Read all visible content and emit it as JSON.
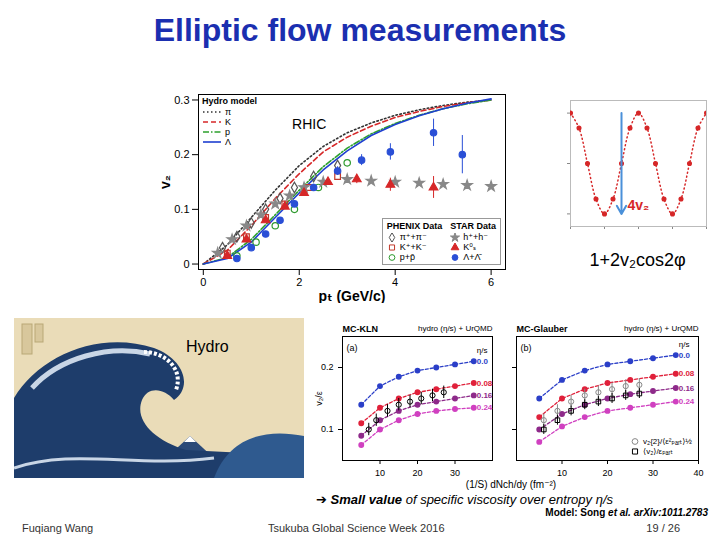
{
  "slide": {
    "title": "Elliptic flow measurements",
    "image_label": "Hydro",
    "conclusion_arrow": "➔",
    "conclusion_emphasis": "Small value",
    "conclusion_rest": " of specific viscosity over entropy η/s",
    "citation_prefix": "Model: Song ",
    "citation_italic": "et al. arXiv:1011.2783",
    "footer_left": "Fuqiang Wang",
    "footer_center": "Tsukuba Global Science Week 2016",
    "page": "19 / 26"
  },
  "chart_data": [
    {
      "type": "scatter",
      "x_label": "pₜ (GeV/c)",
      "y_label": "v₂",
      "xlim": [
        -0.1,
        6.3
      ],
      "ylim": [
        -0.01,
        0.31
      ],
      "xticks": [
        0,
        2,
        4,
        6
      ],
      "yticks": [
        0,
        0.1,
        0.2,
        0.3
      ],
      "annotations": [
        {
          "text": "RHIC",
          "x": 1.85,
          "y": 0.255
        }
      ],
      "legend_groups": [
        {
          "title": "Hydro model",
          "series": [
            "π",
            "K",
            "p",
            "Λ"
          ]
        },
        {
          "title": "PHENIX Data",
          "series": [
            "π⁺+π⁻",
            "K⁺+K⁻",
            "p+p̄"
          ]
        },
        {
          "title": "STAR Data",
          "series": [
            "h⁺+h⁻",
            "K⁰ₛ",
            "Λ+Λ̄"
          ]
        }
      ],
      "series": [
        {
          "name": "π",
          "type": "line",
          "line_style": "dotted",
          "color": "#333333",
          "x": [
            0,
            0.5,
            1,
            1.5,
            2,
            2.5,
            3,
            3.5,
            4,
            4.5,
            5,
            5.5,
            6
          ],
          "values": [
            0,
            0.035,
            0.085,
            0.135,
            0.18,
            0.215,
            0.24,
            0.258,
            0.272,
            0.282,
            0.29,
            0.296,
            0.3
          ]
        },
        {
          "name": "K",
          "type": "line",
          "line_style": "dashed",
          "color": "#d62728",
          "x": [
            0,
            0.5,
            1,
            1.5,
            2,
            2.5,
            3,
            3.5,
            4,
            4.5,
            5,
            5.5,
            6
          ],
          "values": [
            0,
            0.025,
            0.07,
            0.12,
            0.165,
            0.205,
            0.232,
            0.252,
            0.268,
            0.279,
            0.288,
            0.295,
            0.3
          ]
        },
        {
          "name": "p",
          "type": "line",
          "line_style": "dashdot",
          "color": "#2ca02c",
          "x": [
            0,
            0.5,
            1,
            1.5,
            2,
            2.5,
            3,
            3.5,
            4,
            4.5,
            5,
            5.5,
            6
          ],
          "values": [
            0,
            0.012,
            0.045,
            0.09,
            0.135,
            0.178,
            0.212,
            0.238,
            0.257,
            0.272,
            0.284,
            0.293,
            0.3
          ]
        },
        {
          "name": "Λ",
          "type": "line",
          "line_style": "solid",
          "color": "#1f3fd0",
          "x": [
            0,
            0.5,
            1,
            1.5,
            2,
            2.5,
            3,
            3.5,
            4,
            4.5,
            5,
            5.5,
            6
          ],
          "values": [
            0,
            0.01,
            0.04,
            0.085,
            0.13,
            0.172,
            0.207,
            0.235,
            0.255,
            0.271,
            0.284,
            0.294,
            0.302
          ]
        },
        {
          "name": "π⁺+π⁻",
          "type": "scatter",
          "marker": "diamond-open",
          "color": "#555555",
          "x": [
            0.4,
            0.7,
            1.0,
            1.3,
            1.6,
            1.9,
            2.3,
            2.8
          ],
          "values": [
            0.03,
            0.05,
            0.075,
            0.1,
            0.12,
            0.14,
            0.16,
            0.18
          ]
        },
        {
          "name": "K⁺+K⁻",
          "type": "scatter",
          "marker": "square-open",
          "color": "#c0392b",
          "x": [
            0.5,
            0.9,
            1.3,
            1.7,
            2.2,
            2.8
          ],
          "values": [
            0.02,
            0.05,
            0.085,
            0.11,
            0.14,
            0.16
          ]
        },
        {
          "name": "p+p̄",
          "type": "scatter",
          "marker": "circle-open",
          "color": "#2e9a2e",
          "x": [
            0.7,
            1.1,
            1.5,
            1.9,
            2.4,
            3.0
          ],
          "values": [
            0.015,
            0.04,
            0.07,
            0.1,
            0.14,
            0.185
          ]
        },
        {
          "name": "h⁺+h⁻",
          "type": "scatter",
          "marker": "star",
          "color": "#888888",
          "x": [
            0.3,
            0.6,
            0.9,
            1.2,
            1.5,
            1.8,
            2.1,
            2.5,
            3,
            3.5,
            4,
            4.5,
            5,
            5.5,
            6
          ],
          "values": [
            0.02,
            0.045,
            0.07,
            0.09,
            0.11,
            0.125,
            0.14,
            0.15,
            0.155,
            0.152,
            0.15,
            0.148,
            0.146,
            0.144,
            0.142
          ]
        },
        {
          "name": "K⁰ₛ",
          "type": "scatter",
          "marker": "triangle",
          "color": "#d62728",
          "x": [
            0.5,
            0.9,
            1.3,
            1.7,
            2.1,
            2.6,
            3.2,
            3.9,
            4.8
          ],
          "values": [
            0.015,
            0.045,
            0.08,
            0.105,
            0.13,
            0.15,
            0.155,
            0.145,
            0.14
          ],
          "errors": [
            0.002,
            0.003,
            0.003,
            0.004,
            0.005,
            0.006,
            0.008,
            0.012,
            0.02
          ]
        },
        {
          "name": "Λ+Λ̄",
          "type": "scatter",
          "marker": "circle",
          "color": "#2a4fd6",
          "x": [
            0.7,
            1.0,
            1.3,
            1.6,
            1.9,
            2.3,
            2.8,
            3.3,
            3.9,
            4.8,
            5.4
          ],
          "values": [
            0.01,
            0.03,
            0.055,
            0.08,
            0.11,
            0.14,
            0.17,
            0.19,
            0.205,
            0.24,
            0.2
          ],
          "errors": [
            0.003,
            0.003,
            0.004,
            0.004,
            0.005,
            0.006,
            0.008,
            0.01,
            0.015,
            0.025,
            0.035
          ]
        }
      ]
    },
    {
      "type": "scatter",
      "title": "1+2v₂cos2φ",
      "xlim": [
        0,
        360
      ],
      "ylim": [
        0.75,
        1.25
      ],
      "xticks": [
        0,
        90,
        180,
        270,
        360
      ],
      "yticks": [
        0.8,
        1,
        1.2
      ],
      "tick_labels": false,
      "color": "#d62728",
      "marker": "circle",
      "x": [
        0,
        22.5,
        45,
        67.5,
        90,
        112.5,
        135,
        157.5,
        180,
        202.5,
        225,
        247.5,
        270,
        292.5,
        315,
        337.5,
        360
      ],
      "values": [
        1.2,
        1.141,
        1,
        0.859,
        0.8,
        0.859,
        1,
        1.141,
        1.2,
        1.141,
        1,
        0.859,
        0.8,
        0.859,
        1,
        1.141,
        1.2
      ],
      "annotations": [
        {
          "text": "4v₂",
          "x": 135,
          "y1": 1.2,
          "y2": 0.8
        }
      ]
    },
    {
      "type": "line",
      "title": "MC-KLN",
      "subtitle": "hydro (η/s) + UrQMD",
      "panel_label": "(a)",
      "x_label": "(1/S) dNch/dy (fm⁻²)",
      "y_label": "v₂/ε",
      "legend_title": "η/s",
      "xlim": [
        0,
        40
      ],
      "ylim": [
        0.05,
        0.25
      ],
      "xticks": [
        10,
        20,
        30
      ],
      "yticks": [
        0.1,
        0.2
      ],
      "series": [
        {
          "name": "0.0",
          "color": "#2b3fc8",
          "marker": "circle",
          "x": [
            5,
            10,
            15,
            20,
            25,
            30,
            35
          ],
          "values": [
            0.14,
            0.17,
            0.185,
            0.195,
            0.2,
            0.205,
            0.21
          ]
        },
        {
          "name": "0.08",
          "color": "#e0203a",
          "marker": "circle",
          "x": [
            5,
            10,
            15,
            20,
            25,
            30,
            35
          ],
          "values": [
            0.11,
            0.135,
            0.15,
            0.16,
            0.165,
            0.17,
            0.175
          ]
        },
        {
          "name": "0.16",
          "color": "#8e2a8a",
          "marker": "circle",
          "x": [
            5,
            10,
            15,
            20,
            25,
            30,
            35
          ],
          "values": [
            0.09,
            0.115,
            0.13,
            0.14,
            0.145,
            0.15,
            0.155
          ]
        },
        {
          "name": "0.24",
          "color": "#d040c0",
          "marker": "circle",
          "x": [
            5,
            10,
            15,
            20,
            25,
            30,
            35
          ],
          "values": [
            0.075,
            0.1,
            0.115,
            0.125,
            0.13,
            0.133,
            0.135
          ]
        },
        {
          "type": "scatter",
          "color": "#000000",
          "marker": "circle-open",
          "x": [
            7,
            9,
            12,
            15,
            18,
            21,
            24,
            27
          ],
          "values": [
            0.1,
            0.115,
            0.13,
            0.14,
            0.145,
            0.15,
            0.155,
            0.16
          ],
          "errors": [
            0.01,
            0.01,
            0.01,
            0.01,
            0.01,
            0.01,
            0.01,
            0.01
          ]
        }
      ]
    },
    {
      "type": "line",
      "title": "MC-Glauber",
      "subtitle": "hydro (η/s) + UrQMD",
      "panel_label": "(b)",
      "legend_title": "η/s",
      "legend": "lower right",
      "tick_labels": "x",
      "xlim": [
        0,
        40
      ],
      "ylim": [
        0.05,
        0.25
      ],
      "xticks": [
        10,
        20,
        30,
        40
      ],
      "yticks": [
        0.1,
        0.2
      ],
      "series": [
        {
          "name": "0.0",
          "color": "#2b3fc8",
          "marker": "circle",
          "x": [
            5,
            10,
            15,
            20,
            25,
            30,
            35
          ],
          "values": [
            0.15,
            0.18,
            0.195,
            0.205,
            0.21,
            0.215,
            0.22
          ]
        },
        {
          "name": "0.08",
          "color": "#e0203a",
          "marker": "circle",
          "x": [
            5,
            10,
            15,
            20,
            25,
            30,
            35
          ],
          "values": [
            0.12,
            0.15,
            0.165,
            0.175,
            0.18,
            0.185,
            0.19
          ]
        },
        {
          "name": "0.16",
          "color": "#8e2a8a",
          "marker": "circle",
          "x": [
            5,
            10,
            15,
            20,
            25,
            30,
            35
          ],
          "values": [
            0.1,
            0.125,
            0.14,
            0.15,
            0.157,
            0.162,
            0.167
          ]
        },
        {
          "name": "0.24",
          "color": "#d040c0",
          "marker": "circle",
          "x": [
            5,
            10,
            15,
            20,
            25,
            30,
            35
          ],
          "values": [
            0.08,
            0.105,
            0.12,
            0.13,
            0.135,
            0.14,
            0.145
          ]
        },
        {
          "name": "v₂{2}/⟨ε²ₚₐᵣₜ⟩½",
          "type": "scatter",
          "color": "#888888",
          "marker": "circle-open",
          "x": [
            6,
            9,
            12,
            15,
            18,
            21,
            24,
            27
          ],
          "values": [
            0.115,
            0.13,
            0.145,
            0.155,
            0.16,
            0.165,
            0.17,
            0.172
          ],
          "errors": [
            0.01,
            0.01,
            0.01,
            0.01,
            0.01,
            0.01,
            0.01,
            0.01
          ]
        },
        {
          "name": "⟨v₂⟩/εₚₐᵣₜ",
          "type": "scatter",
          "color": "#000000",
          "marker": "square-open",
          "x": [
            6,
            9,
            12,
            15,
            18,
            21,
            24,
            27
          ],
          "values": [
            0.1,
            0.115,
            0.13,
            0.14,
            0.145,
            0.15,
            0.155,
            0.158
          ],
          "errors": [
            0.008,
            0.008,
            0.008,
            0.008,
            0.008,
            0.008,
            0.008,
            0.008
          ]
        }
      ]
    }
  ]
}
